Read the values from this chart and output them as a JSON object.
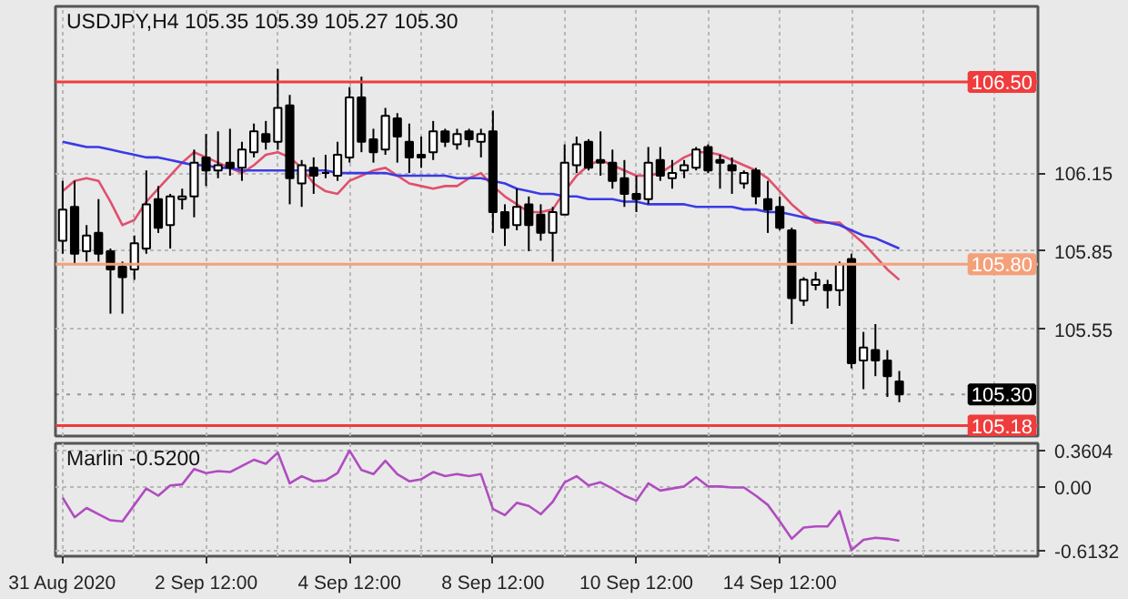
{
  "chart_data": [
    {
      "type": "candlestick",
      "title": "USDJPY,H4 105.35 105.39 105.27 105.30",
      "categories": [
        null,
        null,
        null,
        null,
        null,
        null,
        null,
        null,
        null,
        null,
        null,
        null,
        null,
        null,
        null,
        null,
        null,
        null,
        null,
        null,
        null,
        null,
        null,
        null,
        null,
        null,
        null,
        null,
        null,
        null,
        null,
        null,
        null,
        null,
        null,
        null,
        null,
        null,
        null,
        null,
        null,
        null,
        null,
        null,
        null,
        null,
        null,
        null,
        null,
        null,
        null,
        null,
        null,
        null,
        null,
        null,
        null,
        null,
        null,
        null,
        null,
        null,
        null,
        null,
        null,
        null,
        null,
        null,
        null,
        null,
        null
      ],
      "ohlc": [
        [
          105.89,
          106.12,
          105.84,
          106.01
        ],
        [
          106.02,
          106.12,
          105.8,
          105.84
        ],
        [
          105.85,
          105.95,
          105.81,
          105.91
        ],
        [
          105.92,
          106.05,
          105.81,
          105.84
        ],
        [
          105.85,
          105.86,
          105.61,
          105.78
        ],
        [
          105.79,
          105.81,
          105.61,
          105.75
        ],
        [
          105.78,
          105.91,
          105.74,
          105.88
        ],
        [
          105.86,
          106.16,
          105.84,
          106.03
        ],
        [
          106.05,
          106.1,
          105.92,
          105.94
        ],
        [
          105.95,
          106.07,
          105.86,
          106.06
        ],
        [
          106.05,
          106.09,
          106.01,
          106.06
        ],
        [
          106.06,
          106.24,
          105.98,
          106.19
        ],
        [
          106.21,
          106.3,
          106.1,
          106.16
        ],
        [
          106.16,
          106.31,
          106.13,
          106.18
        ],
        [
          106.19,
          106.32,
          106.14,
          106.17
        ],
        [
          106.17,
          106.27,
          106.12,
          106.24
        ],
        [
          106.23,
          106.34,
          106.21,
          106.31
        ],
        [
          106.3,
          106.35,
          106.24,
          106.27
        ],
        [
          106.27,
          106.55,
          106.24,
          106.4
        ],
        [
          106.41,
          106.45,
          106.03,
          106.13
        ],
        [
          106.11,
          106.2,
          106.02,
          106.18
        ],
        [
          106.17,
          106.21,
          106.07,
          106.14
        ],
        [
          106.15,
          106.22,
          106.13,
          106.15
        ],
        [
          106.14,
          106.27,
          106.12,
          106.22
        ],
        [
          106.21,
          106.48,
          106.19,
          106.44
        ],
        [
          106.44,
          106.52,
          106.23,
          106.27
        ],
        [
          106.28,
          106.32,
          106.19,
          106.23
        ],
        [
          106.24,
          106.4,
          106.22,
          106.37
        ],
        [
          106.36,
          106.38,
          106.19,
          106.29
        ],
        [
          106.27,
          106.34,
          106.15,
          106.21
        ],
        [
          106.22,
          106.29,
          106.17,
          106.21
        ],
        [
          106.23,
          106.35,
          106.2,
          106.31
        ],
        [
          106.31,
          106.32,
          106.25,
          106.27
        ],
        [
          106.26,
          106.32,
          106.24,
          106.3
        ],
        [
          106.31,
          106.32,
          106.25,
          106.28
        ],
        [
          106.27,
          106.32,
          106.21,
          106.3
        ],
        [
          106.31,
          106.39,
          105.92,
          106.0
        ],
        [
          106.0,
          106.03,
          105.87,
          105.94
        ],
        [
          105.95,
          106.09,
          105.93,
          106.02
        ],
        [
          106.03,
          106.06,
          105.85,
          105.95
        ],
        [
          105.99,
          106.03,
          105.89,
          105.92
        ],
        [
          105.92,
          106.02,
          105.81,
          106.0
        ],
        [
          105.99,
          106.26,
          105.99,
          106.19
        ],
        [
          106.18,
          106.29,
          106.15,
          106.26
        ],
        [
          106.27,
          106.28,
          106.16,
          106.17
        ],
        [
          106.2,
          106.31,
          106.14,
          106.19
        ],
        [
          106.19,
          106.24,
          106.09,
          106.12
        ],
        [
          106.13,
          106.2,
          106.02,
          106.07
        ],
        [
          106.07,
          106.14,
          106.0,
          106.05
        ],
        [
          106.05,
          106.25,
          106.03,
          106.19
        ],
        [
          106.2,
          106.25,
          106.12,
          106.14
        ],
        [
          106.13,
          106.2,
          106.09,
          106.15
        ],
        [
          106.16,
          106.2,
          106.13,
          106.18
        ],
        [
          106.17,
          106.25,
          106.16,
          106.24
        ],
        [
          106.25,
          106.26,
          106.15,
          106.16
        ],
        [
          106.2,
          106.22,
          106.09,
          106.19
        ],
        [
          106.18,
          106.21,
          106.07,
          106.16
        ],
        [
          106.11,
          106.16,
          106.09,
          106.15
        ],
        [
          106.16,
          106.17,
          106.03,
          106.06
        ],
        [
          106.05,
          106.12,
          105.92,
          106.01
        ],
        [
          106.02,
          106.06,
          105.93,
          105.94
        ],
        [
          105.93,
          105.94,
          105.57,
          105.67
        ],
        [
          105.66,
          105.75,
          105.64,
          105.74
        ],
        [
          105.72,
          105.77,
          105.7,
          105.74
        ],
        [
          105.72,
          105.74,
          105.63,
          105.7
        ],
        [
          105.7,
          105.81,
          105.64,
          105.8
        ],
        [
          105.82,
          105.84,
          105.4,
          105.42
        ],
        [
          105.43,
          105.54,
          105.32,
          105.48
        ],
        [
          105.47,
          105.57,
          105.37,
          105.43
        ],
        [
          105.43,
          105.47,
          105.29,
          105.37
        ],
        [
          105.35,
          105.39,
          105.27,
          105.3
        ]
      ],
      "series": [
        {
          "type": "line",
          "color": "#e0506e",
          "values": [
            106.08,
            106.12,
            106.13,
            106.12,
            106.04,
            105.95,
            105.97,
            106.04,
            106.09,
            106.14,
            106.19,
            106.23,
            106.21,
            106.19,
            106.17,
            106.15,
            106.18,
            106.22,
            106.23,
            106.21,
            106.17,
            106.11,
            106.08,
            106.07,
            106.12,
            106.14,
            106.16,
            106.17,
            106.14,
            106.11,
            106.1,
            106.09,
            106.1,
            106.1,
            106.13,
            106.15,
            106.1,
            106.06,
            106.03,
            106.0,
            106.0,
            106.01,
            106.08,
            106.14,
            106.18,
            106.2,
            106.18,
            106.16,
            106.14,
            106.14,
            106.15,
            106.18,
            106.21,
            106.23,
            106.23,
            106.22,
            106.2,
            106.18,
            106.16,
            106.13,
            106.08,
            106.03,
            105.99,
            105.96,
            105.96,
            105.96,
            105.92,
            105.88,
            105.83,
            105.78,
            105.74
          ]
        },
        {
          "type": "line",
          "color": "#3a3ae6",
          "values": [
            106.27,
            106.26,
            106.25,
            106.25,
            106.24,
            106.23,
            106.22,
            106.21,
            106.21,
            106.2,
            106.19,
            106.18,
            106.18,
            106.17,
            106.17,
            106.16,
            106.16,
            106.16,
            106.16,
            106.16,
            106.16,
            106.16,
            106.16,
            106.15,
            106.15,
            106.15,
            106.15,
            106.15,
            106.14,
            106.14,
            106.14,
            106.14,
            106.14,
            106.13,
            106.13,
            106.13,
            106.12,
            106.11,
            106.09,
            106.08,
            106.07,
            106.07,
            106.06,
            106.06,
            106.05,
            106.05,
            106.05,
            106.04,
            106.04,
            106.03,
            106.03,
            106.03,
            106.03,
            106.02,
            106.02,
            106.02,
            106.02,
            106.01,
            106.01,
            106.0,
            106.0,
            105.99,
            105.98,
            105.97,
            105.96,
            105.95,
            105.93,
            105.91,
            105.9,
            105.88,
            105.86
          ]
        }
      ],
      "ylim": [
        105.14,
        106.79
      ],
      "yticks": [
        106.15,
        105.85,
        105.55
      ],
      "ref_lines": [
        {
          "axis": "y",
          "value": 106.5,
          "label": "106.50",
          "color": "#f03c3c"
        },
        {
          "axis": "y",
          "value": 105.8,
          "label": "105.80",
          "color": "#f4a07a"
        },
        {
          "axis": "y",
          "value": 105.18,
          "label": "105.18",
          "color": "#f03c3c"
        },
        {
          "axis": "y",
          "value": 105.3,
          "label": "105.30",
          "color": "#000000",
          "line_style": "dotted"
        }
      ],
      "grid": true,
      "tick_labels": "y"
    },
    {
      "type": "line",
      "title": "Marlin -0.5200",
      "categories": [
        "31 Aug 2020",
        null,
        null,
        null,
        null,
        null,
        null,
        null,
        null,
        null,
        null,
        null,
        "2 Sep 12:00",
        null,
        null,
        null,
        null,
        null,
        null,
        null,
        null,
        null,
        null,
        null,
        "4 Sep 12:00",
        null,
        null,
        null,
        null,
        null,
        null,
        null,
        null,
        null,
        null,
        null,
        "8 Sep 12:00",
        null,
        null,
        null,
        null,
        null,
        null,
        null,
        null,
        null,
        null,
        null,
        "10 Sep 12:00",
        null,
        null,
        null,
        null,
        null,
        null,
        null,
        null,
        null,
        null,
        null,
        "14 Sep 12:00",
        null,
        null,
        null,
        null,
        null,
        null,
        null,
        null,
        null,
        null
      ],
      "series": [
        {
          "color": "#b04cc0",
          "values": [
            -0.1,
            -0.29,
            -0.2,
            -0.26,
            -0.32,
            -0.33,
            -0.17,
            -0.01,
            -0.08,
            0.02,
            0.03,
            0.18,
            0.14,
            0.16,
            0.15,
            0.21,
            0.27,
            0.23,
            0.34,
            0.04,
            0.11,
            0.06,
            0.07,
            0.14,
            0.36,
            0.17,
            0.13,
            0.26,
            0.13,
            0.06,
            0.08,
            0.15,
            0.11,
            0.13,
            0.11,
            0.13,
            -0.21,
            -0.27,
            -0.15,
            -0.18,
            -0.26,
            -0.14,
            0.05,
            0.11,
            0.02,
            0.05,
            -0.01,
            -0.08,
            -0.13,
            0.04,
            -0.03,
            -0.01,
            0.01,
            0.1,
            0.01,
            0.01,
            0.0,
            0.0,
            -0.08,
            -0.17,
            -0.33,
            -0.5,
            -0.39,
            -0.38,
            -0.38,
            -0.23,
            -0.61,
            -0.51,
            -0.49,
            -0.5,
            -0.52
          ]
        }
      ],
      "ylim": [
        -0.67,
        0.43
      ],
      "yticks": [
        {
          "value": 0.3604,
          "label": "0.3604"
        },
        {
          "value": 0,
          "label": "0.00"
        },
        {
          "value": -0.6132,
          "label": "-0.6132"
        }
      ],
      "grid": true
    }
  ]
}
